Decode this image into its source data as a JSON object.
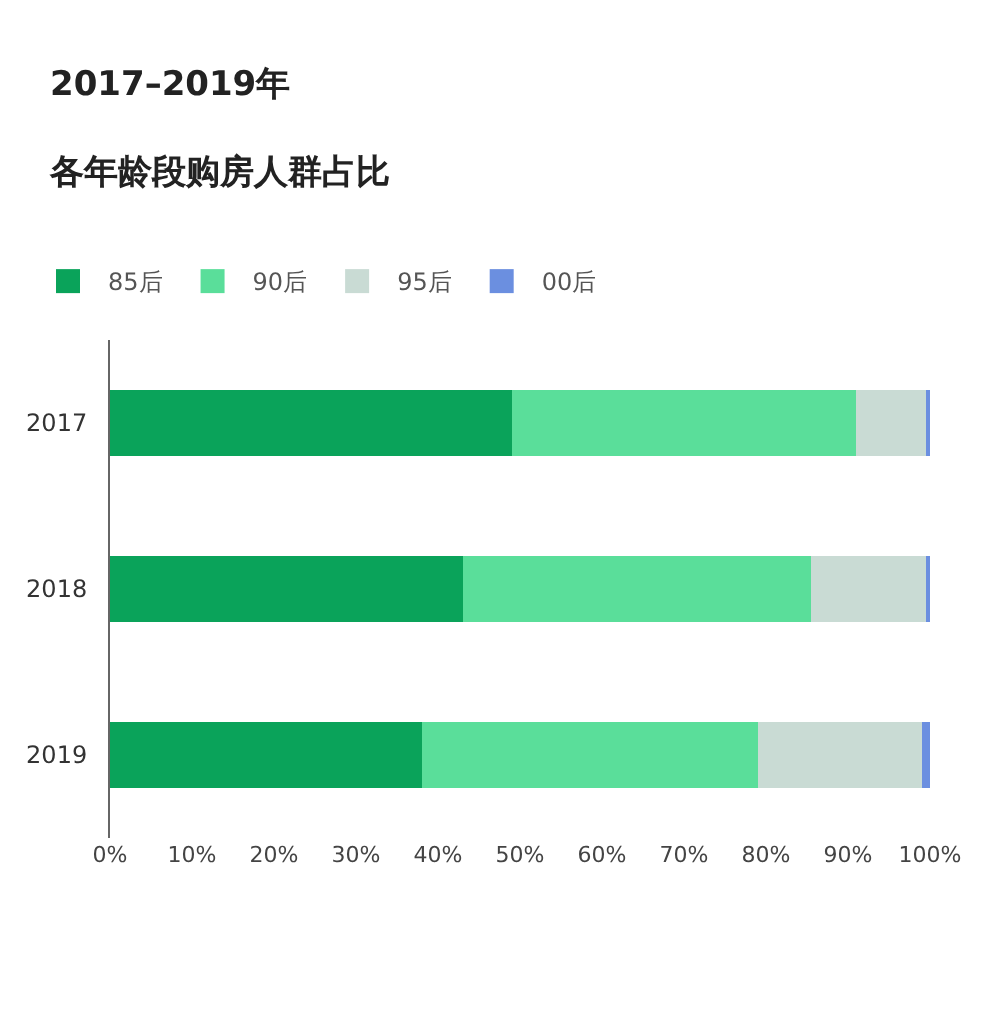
{
  "chart_data": {
    "type": "bar",
    "title": "2017–2019年",
    "subtitle": "各年龄段购房人群占比",
    "orientation": "horizontal",
    "stacked": true,
    "categories": [
      "2017",
      "2018",
      "2019"
    ],
    "series": [
      {
        "name": "85后",
        "color": "#0aa35a",
        "values": [
          49,
          43,
          38
        ]
      },
      {
        "name": "90后",
        "color": "#5ade9a",
        "values": [
          42,
          42.5,
          41
        ]
      },
      {
        "name": "95后",
        "color": "#c9dbd4",
        "values": [
          8.7,
          14,
          20
        ]
      },
      {
        "name": "00后",
        "color": "#6b8fe0",
        "values": [
          0.3,
          0.5,
          1
        ]
      }
    ],
    "xlim": [
      0,
      100
    ],
    "xticks": [
      {
        "value": 0,
        "label": "0%"
      },
      {
        "value": 10,
        "label": "10%"
      },
      {
        "value": 20,
        "label": "20%"
      },
      {
        "value": 30,
        "label": "30%"
      },
      {
        "value": 40,
        "label": "40%"
      },
      {
        "value": 50,
        "label": "50%"
      },
      {
        "value": 60,
        "label": "60%"
      },
      {
        "value": 70,
        "label": "70%"
      },
      {
        "value": 80,
        "label": "80%"
      },
      {
        "value": 90,
        "label": "90%"
      },
      {
        "value": 100,
        "label": "100%"
      }
    ],
    "legend": "top left"
  }
}
